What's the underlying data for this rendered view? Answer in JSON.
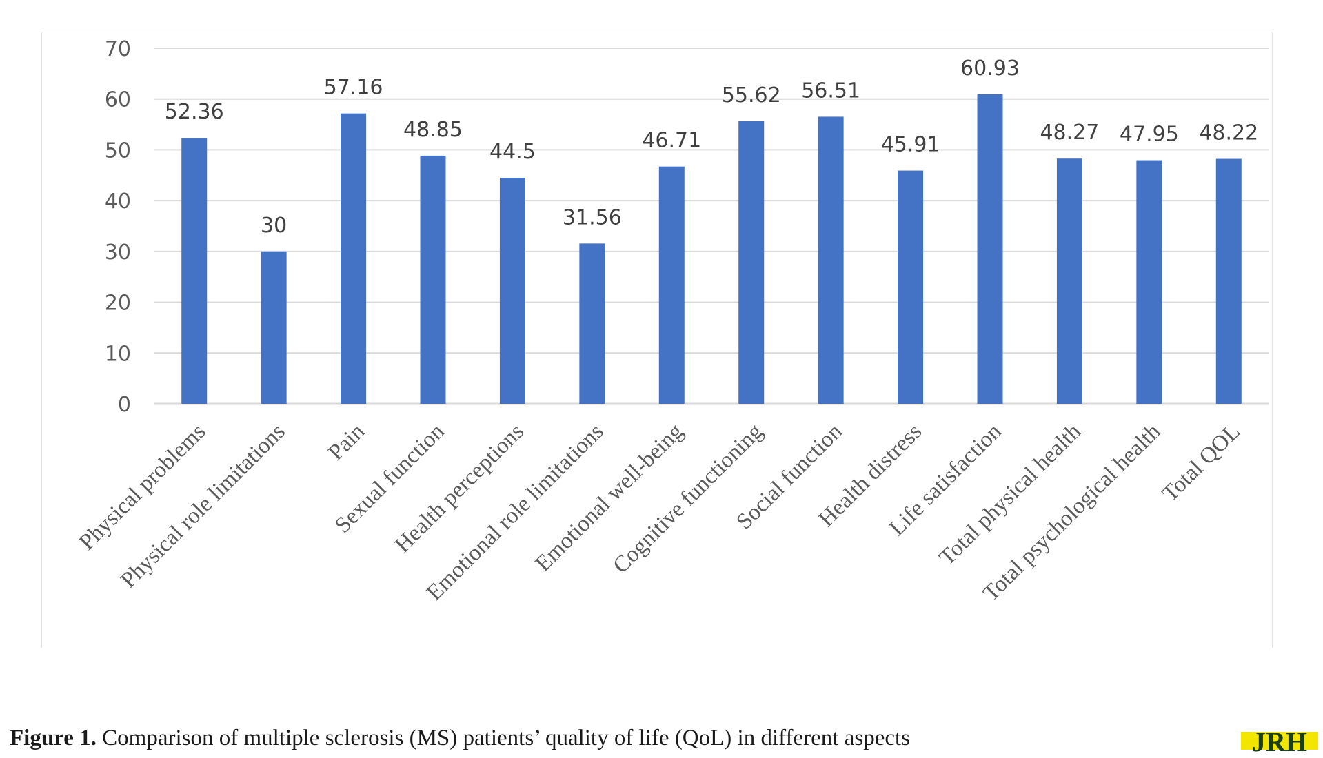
{
  "chart_data": {
    "type": "bar",
    "categories": [
      "Physical problems",
      "Physical role limitations",
      "Pain",
      "Sexual function",
      "Health perceptions",
      "Emotional role limitations",
      "Emotional well-being",
      "Cognitive functioning",
      "Social function",
      "Health distress",
      "Life satisfaction",
      "Total physical health",
      "Total psychological health",
      "Total QOL"
    ],
    "values": [
      52.36,
      30,
      57.16,
      48.85,
      44.5,
      31.56,
      46.71,
      55.62,
      56.51,
      45.91,
      60.93,
      48.27,
      47.95,
      48.22
    ],
    "data_labels": [
      "52.36",
      "30",
      "57.16",
      "48.85",
      "44.5",
      "31.56",
      "46.71",
      "55.62",
      "56.51",
      "45.91",
      "60.93",
      "48.27",
      "47.95",
      "48.22"
    ],
    "ylim": [
      0,
      70
    ],
    "yticks": [
      0,
      10,
      20,
      30,
      40,
      50,
      60,
      70
    ],
    "grid": true,
    "legend": "none",
    "bar_color": "#4472C4",
    "grid_color": "#d9d9d9"
  },
  "caption": {
    "label": "Figure 1.",
    "text": " Comparison of multiple sclerosis (MS) patients’ quality of life (QoL) in different aspects"
  },
  "logo": {
    "text": "JRH",
    "color_fill": "#f2e600",
    "color_text": "#1a3f1a"
  }
}
